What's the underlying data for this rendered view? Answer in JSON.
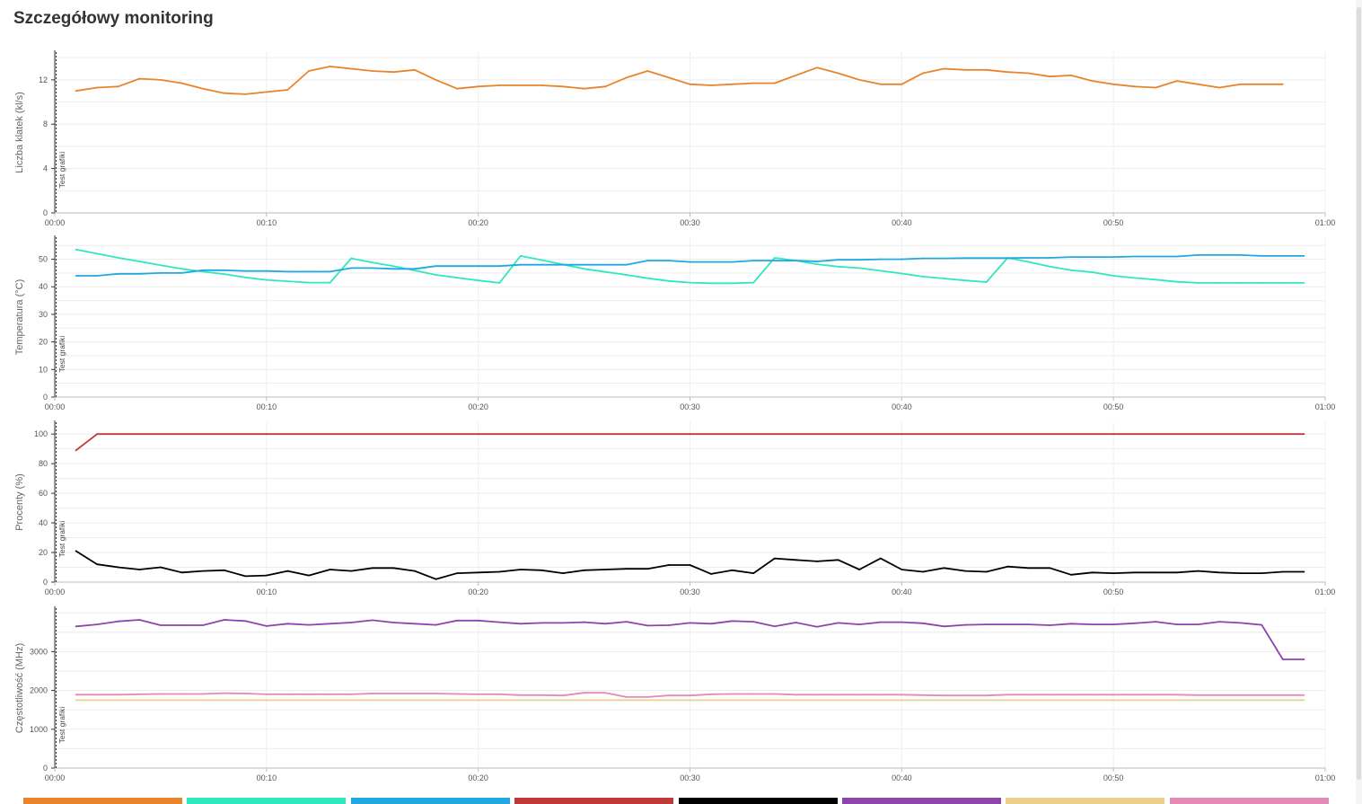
{
  "page": {
    "title": "Szczegółowy monitoring"
  },
  "colors": {
    "fps": "#e8852c",
    "gpu_temp": "#2ee8c0",
    "cpu_temp": "#20a8e0",
    "gpu_load": "#c0383a",
    "cpu_load": "#000000",
    "cpu_clock": "#8e44ad",
    "gpu_clock": "#e8d08c",
    "mem_clock": "#e48ab4"
  },
  "chart_data": [
    {
      "type": "line",
      "ylabel": "Liczba klatek (kl/s)",
      "annotation": "Test grafiki",
      "x_ticks": [
        "00:00",
        "00:10",
        "00:20",
        "00:30",
        "00:40",
        "00:50",
        "01:00"
      ],
      "y_ticks": [
        0,
        4,
        8,
        12
      ],
      "ylim": [
        0,
        14.5
      ],
      "xlim": [
        0,
        60
      ],
      "grid": true,
      "series": [
        {
          "color_key": "fps",
          "x": [
            1,
            2,
            3,
            4,
            5,
            6,
            7,
            8,
            9,
            10,
            11,
            12,
            13,
            14,
            15,
            16,
            17,
            18,
            19,
            20,
            21,
            22,
            23,
            24,
            25,
            26,
            27,
            28,
            29,
            30,
            31,
            32,
            33,
            34,
            35,
            36,
            37,
            38,
            39,
            40,
            41,
            42,
            43,
            44,
            45,
            46,
            47,
            48,
            49,
            50,
            51,
            52,
            53,
            54,
            55,
            56,
            57,
            58
          ],
          "values": [
            11.0,
            11.3,
            11.4,
            12.1,
            12.0,
            11.7,
            11.2,
            10.8,
            10.7,
            10.9,
            11.1,
            12.8,
            13.2,
            13.0,
            12.8,
            12.7,
            12.9,
            12.0,
            11.2,
            11.4,
            11.5,
            11.5,
            11.5,
            11.4,
            11.2,
            11.4,
            12.2,
            12.8,
            12.2,
            11.6,
            11.5,
            11.6,
            11.7,
            11.7,
            12.4,
            13.1,
            12.6,
            12.0,
            11.6,
            11.6,
            12.6,
            13.0,
            12.9,
            12.9,
            12.7,
            12.6,
            12.3,
            12.4,
            11.9,
            11.6,
            11.4,
            11.3,
            11.9,
            11.6,
            11.3,
            11.6,
            11.6,
            11.6
          ]
        }
      ]
    },
    {
      "type": "line",
      "ylabel": "Temperatura (°C)",
      "annotation": "Test grafiki",
      "x_ticks": [
        "00:00",
        "00:10",
        "00:20",
        "00:30",
        "00:40",
        "00:50",
        "01:00"
      ],
      "y_ticks": [
        0,
        10,
        20,
        30,
        40,
        50
      ],
      "ylim": [
        0,
        58
      ],
      "xlim": [
        0,
        60
      ],
      "grid": true,
      "series": [
        {
          "color_key": "gpu_temp",
          "x": [
            1,
            2,
            3,
            4,
            5,
            6,
            7,
            8,
            9,
            10,
            11,
            12,
            13,
            14,
            15,
            16,
            17,
            18,
            19,
            20,
            21,
            22,
            23,
            24,
            25,
            26,
            27,
            28,
            29,
            30,
            31,
            32,
            33,
            34,
            35,
            36,
            37,
            38,
            39,
            40,
            41,
            42,
            43,
            44,
            45,
            46,
            47,
            48,
            49,
            50,
            51,
            52,
            53,
            54,
            55,
            56,
            57,
            58,
            59
          ],
          "values": [
            53.5,
            52.0,
            50.5,
            49.2,
            47.8,
            46.5,
            45.5,
            44.6,
            43.4,
            42.5,
            42.0,
            41.5,
            41.5,
            50.3,
            48.8,
            47.5,
            45.9,
            44.3,
            43.3,
            42.3,
            41.4,
            51.2,
            49.7,
            48.1,
            46.5,
            45.4,
            44.3,
            43.1,
            42.1,
            41.5,
            41.3,
            41.3,
            41.5,
            50.5,
            49.5,
            48.2,
            47.3,
            46.8,
            45.8,
            44.8,
            43.7,
            43.0,
            42.3,
            41.7,
            50.5,
            49.0,
            47.3,
            46.0,
            45.3,
            44.0,
            43.2,
            42.6,
            41.8,
            41.4,
            41.4,
            41.4,
            41.4,
            41.4,
            41.4
          ]
        },
        {
          "color_key": "cpu_temp",
          "x": [
            1,
            2,
            3,
            4,
            5,
            6,
            7,
            8,
            9,
            10,
            11,
            12,
            13,
            14,
            15,
            16,
            17,
            18,
            19,
            20,
            21,
            22,
            23,
            24,
            25,
            26,
            27,
            28,
            29,
            30,
            31,
            32,
            33,
            34,
            35,
            36,
            37,
            38,
            39,
            40,
            41,
            42,
            43,
            44,
            45,
            46,
            47,
            48,
            49,
            50,
            51,
            52,
            53,
            54,
            55,
            56,
            57,
            58,
            59
          ],
          "values": [
            44.0,
            44.0,
            44.7,
            44.7,
            45.0,
            45.0,
            46.0,
            46.0,
            45.7,
            45.7,
            45.5,
            45.5,
            45.5,
            46.8,
            46.8,
            46.5,
            46.5,
            47.5,
            47.5,
            47.5,
            47.5,
            48.0,
            48.0,
            48.0,
            48.0,
            48.0,
            48.0,
            49.5,
            49.5,
            49.0,
            49.0,
            49.0,
            49.5,
            49.5,
            49.5,
            49.2,
            49.8,
            49.8,
            50.0,
            50.0,
            50.3,
            50.3,
            50.4,
            50.4,
            50.4,
            50.5,
            50.5,
            50.8,
            50.8,
            50.8,
            51.0,
            51.0,
            51.0,
            51.5,
            51.5,
            51.5,
            51.2,
            51.2,
            51.2
          ]
        }
      ]
    },
    {
      "type": "line",
      "ylabel": "Procenty (%)",
      "annotation": "Test grafiki",
      "x_ticks": [
        "00:00",
        "00:10",
        "00:20",
        "00:30",
        "00:40",
        "00:50",
        "01:00"
      ],
      "y_ticks": [
        0,
        20,
        40,
        60,
        80,
        100
      ],
      "ylim": [
        0,
        108
      ],
      "xlim": [
        0,
        60
      ],
      "grid": true,
      "series": [
        {
          "color_key": "gpu_load",
          "x": [
            1,
            2,
            3,
            4,
            5,
            6,
            7,
            8,
            9,
            10,
            11,
            12,
            13,
            14,
            15,
            16,
            17,
            18,
            19,
            20,
            21,
            22,
            23,
            24,
            25,
            26,
            27,
            28,
            29,
            30,
            31,
            32,
            33,
            34,
            35,
            36,
            37,
            38,
            39,
            40,
            41,
            42,
            43,
            44,
            45,
            46,
            47,
            48,
            49,
            50,
            51,
            52,
            53,
            54,
            55,
            56,
            57,
            58,
            59
          ],
          "values": [
            89,
            100,
            100,
            100,
            100,
            100,
            100,
            100,
            100,
            100,
            100,
            100,
            100,
            100,
            100,
            100,
            100,
            100,
            100,
            100,
            100,
            100,
            100,
            100,
            100,
            100,
            100,
            100,
            100,
            100,
            100,
            100,
            100,
            100,
            100,
            100,
            100,
            100,
            100,
            100,
            100,
            100,
            100,
            100,
            100,
            100,
            100,
            100,
            100,
            100,
            100,
            100,
            100,
            100,
            100,
            100,
            100,
            100,
            100
          ]
        },
        {
          "color_key": "cpu_load",
          "x": [
            1,
            2,
            3,
            4,
            5,
            6,
            7,
            8,
            9,
            10,
            11,
            12,
            13,
            14,
            15,
            16,
            17,
            18,
            19,
            20,
            21,
            22,
            23,
            24,
            25,
            26,
            27,
            28,
            29,
            30,
            31,
            32,
            33,
            34,
            35,
            36,
            37,
            38,
            39,
            40,
            41,
            42,
            43,
            44,
            45,
            46,
            47,
            48,
            49,
            50,
            51,
            52,
            53,
            54,
            55,
            56,
            57,
            58,
            59
          ],
          "values": [
            21,
            12,
            10,
            8.5,
            10,
            6.5,
            7.5,
            8,
            4,
            4.5,
            7.5,
            4.5,
            8.5,
            7.5,
            9.5,
            9.5,
            7.5,
            2,
            6,
            6.5,
            7,
            8.5,
            8,
            6,
            8,
            8.5,
            9,
            9,
            11.5,
            11.5,
            5.5,
            8,
            6,
            16,
            15,
            14,
            15,
            8.5,
            16,
            8.5,
            7,
            9.5,
            7.5,
            7,
            10.5,
            9.5,
            9.5,
            5,
            6.5,
            6,
            6.5,
            6.5,
            6.5,
            7.5,
            6.5,
            6,
            6,
            7,
            7
          ]
        }
      ]
    },
    {
      "type": "line",
      "ylabel": "Częstotliwość (MHz)",
      "annotation": "Test grafiki",
      "x_ticks": [
        "00:00",
        "00:10",
        "00:20",
        "00:30",
        "00:40",
        "00:50",
        "01:00"
      ],
      "y_ticks": [
        0,
        1000,
        2000,
        3000
      ],
      "ylim": [
        0,
        4120
      ],
      "xlim": [
        0,
        60
      ],
      "grid": true,
      "series": [
        {
          "color_key": "cpu_clock",
          "x": [
            1,
            2,
            3,
            4,
            5,
            6,
            7,
            8,
            9,
            10,
            11,
            12,
            13,
            14,
            15,
            16,
            17,
            18,
            19,
            20,
            21,
            22,
            23,
            24,
            25,
            26,
            27,
            28,
            29,
            30,
            31,
            32,
            33,
            34,
            35,
            36,
            37,
            38,
            39,
            40,
            41,
            42,
            43,
            44,
            45,
            46,
            47,
            48,
            49,
            50,
            51,
            52,
            53,
            54,
            55,
            56,
            57,
            58,
            59
          ],
          "values": [
            3650,
            3700,
            3780,
            3820,
            3680,
            3680,
            3680,
            3820,
            3790,
            3660,
            3720,
            3690,
            3720,
            3750,
            3810,
            3750,
            3720,
            3690,
            3800,
            3800,
            3760,
            3720,
            3740,
            3740,
            3760,
            3720,
            3770,
            3670,
            3680,
            3740,
            3720,
            3790,
            3770,
            3650,
            3750,
            3640,
            3740,
            3700,
            3760,
            3760,
            3730,
            3650,
            3690,
            3700,
            3700,
            3700,
            3680,
            3720,
            3700,
            3700,
            3730,
            3770,
            3700,
            3700,
            3770,
            3740,
            3690,
            2800,
            2800
          ]
        },
        {
          "color_key": "mem_clock",
          "x": [
            1,
            2,
            3,
            4,
            5,
            6,
            7,
            8,
            9,
            10,
            11,
            12,
            13,
            14,
            15,
            16,
            17,
            18,
            19,
            20,
            21,
            22,
            23,
            24,
            25,
            26,
            27,
            28,
            29,
            30,
            31,
            32,
            33,
            34,
            35,
            36,
            37,
            38,
            39,
            40,
            41,
            42,
            43,
            44,
            45,
            46,
            47,
            48,
            49,
            50,
            51,
            52,
            53,
            54,
            55,
            56,
            57,
            58,
            59
          ],
          "values": [
            1890,
            1890,
            1890,
            1900,
            1910,
            1910,
            1910,
            1930,
            1920,
            1900,
            1900,
            1900,
            1900,
            1900,
            1920,
            1920,
            1920,
            1920,
            1910,
            1900,
            1900,
            1880,
            1880,
            1870,
            1940,
            1940,
            1830,
            1830,
            1870,
            1870,
            1900,
            1910,
            1910,
            1910,
            1890,
            1890,
            1890,
            1890,
            1890,
            1890,
            1880,
            1870,
            1870,
            1870,
            1890,
            1890,
            1890,
            1890,
            1890,
            1890,
            1890,
            1890,
            1890,
            1880,
            1880,
            1880,
            1880,
            1880,
            1880
          ]
        },
        {
          "color_key": "gpu_clock",
          "x": [
            1,
            2,
            3,
            4,
            5,
            6,
            7,
            8,
            9,
            10,
            11,
            12,
            13,
            14,
            15,
            16,
            17,
            18,
            19,
            20,
            21,
            22,
            23,
            24,
            25,
            26,
            27,
            28,
            29,
            30,
            31,
            32,
            33,
            34,
            35,
            36,
            37,
            38,
            39,
            40,
            41,
            42,
            43,
            44,
            45,
            46,
            47,
            48,
            49,
            50,
            51,
            52,
            53,
            54,
            55,
            56,
            57,
            58,
            59
          ],
          "values": [
            1750,
            1750,
            1750,
            1750,
            1750,
            1750,
            1750,
            1750,
            1750,
            1750,
            1750,
            1750,
            1750,
            1750,
            1750,
            1750,
            1750,
            1750,
            1750,
            1750,
            1750,
            1750,
            1750,
            1750,
            1750,
            1750,
            1750,
            1750,
            1750,
            1750,
            1750,
            1750,
            1750,
            1750,
            1750,
            1750,
            1750,
            1750,
            1750,
            1750,
            1750,
            1750,
            1750,
            1750,
            1750,
            1750,
            1750,
            1750,
            1750,
            1750,
            1750,
            1750,
            1750,
            1750,
            1750,
            1750,
            1750,
            1750,
            1750
          ]
        }
      ]
    }
  ],
  "legend": {
    "color_keys": [
      "fps",
      "gpu_temp",
      "cpu_temp",
      "gpu_load",
      "cpu_load",
      "cpu_clock",
      "gpu_clock",
      "mem_clock"
    ]
  }
}
